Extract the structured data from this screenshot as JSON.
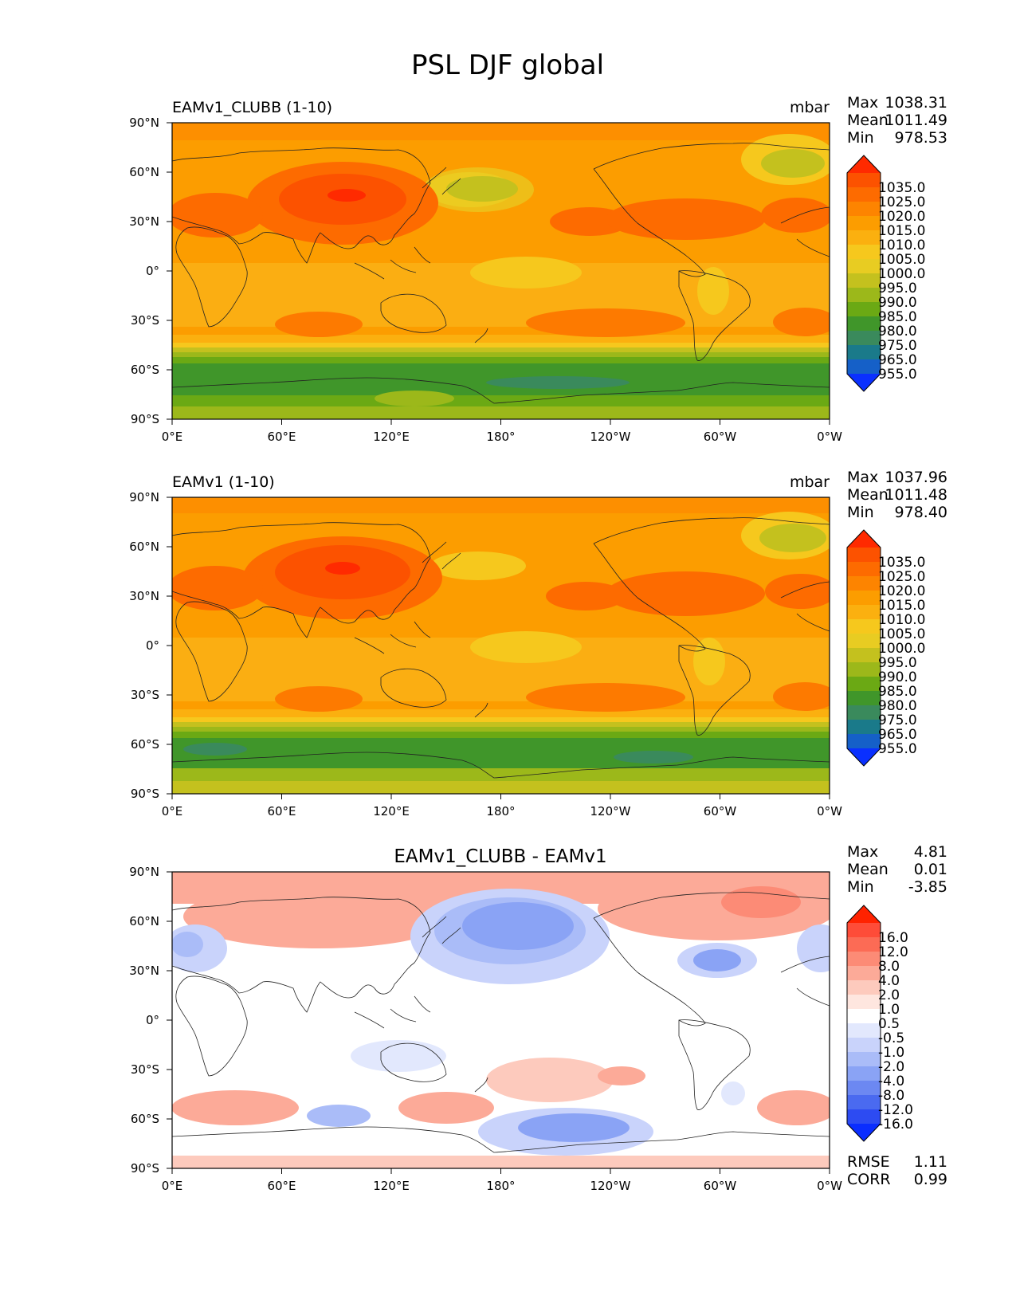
{
  "title": "PSL DJF global",
  "chart_data": [
    {
      "type": "heatmap",
      "name": "test",
      "left_title": "EAMv1_CLUBB (1-10)",
      "units": "mbar",
      "stats": [
        {
          "label": "Max",
          "value": "1038.31"
        },
        {
          "label": "Mean",
          "value": "1011.49"
        },
        {
          "label": "Min",
          "value": "978.53"
        }
      ],
      "xticks": [
        "0°E",
        "60°E",
        "120°E",
        "180°",
        "120°W",
        "60°W",
        "0°W"
      ],
      "yticks": [
        "90°N",
        "60°N",
        "30°N",
        "0°",
        "30°S",
        "60°S",
        "90°S"
      ],
      "xlim": [
        0,
        360
      ],
      "ylim": [
        -90,
        90
      ],
      "colorbar": {
        "levels": [
          "1035.0",
          "1025.0",
          "1020.0",
          "1015.0",
          "1010.0",
          "1005.0",
          "1000.0",
          "995.0",
          "990.0",
          "985.0",
          "980.0",
          "975.0",
          "965.0",
          "955.0"
        ],
        "colors": [
          "#ff2a00",
          "#fc5200",
          "#fd6b00",
          "#fd8400",
          "#fc9d00",
          "#fbb00f",
          "#f6c81d",
          "#e8cc22",
          "#c4c11e",
          "#9cb81a",
          "#6ba914",
          "#40962a",
          "#3a8a5c",
          "#1a7a8a",
          "#1560c8",
          "#0a30ff"
        ]
      }
    },
    {
      "type": "heatmap",
      "name": "reference",
      "left_title": "EAMv1 (1-10)",
      "units": "mbar",
      "stats": [
        {
          "label": "Max",
          "value": "1037.96"
        },
        {
          "label": "Mean",
          "value": "1011.48"
        },
        {
          "label": "Min",
          "value": "978.40"
        }
      ],
      "xticks": [
        "0°E",
        "60°E",
        "120°E",
        "180°",
        "120°W",
        "60°W",
        "0°W"
      ],
      "yticks": [
        "90°N",
        "60°N",
        "30°N",
        "0°",
        "30°S",
        "60°S",
        "90°S"
      ],
      "xlim": [
        0,
        360
      ],
      "ylim": [
        -90,
        90
      ],
      "colorbar": {
        "levels": [
          "1035.0",
          "1025.0",
          "1020.0",
          "1015.0",
          "1010.0",
          "1005.0",
          "1000.0",
          "995.0",
          "990.0",
          "985.0",
          "980.0",
          "975.0",
          "965.0",
          "955.0"
        ],
        "colors": [
          "#ff2a00",
          "#fc5200",
          "#fd6b00",
          "#fd8400",
          "#fc9d00",
          "#fbb00f",
          "#f6c81d",
          "#e8cc22",
          "#c4c11e",
          "#9cb81a",
          "#6ba914",
          "#40962a",
          "#3a8a5c",
          "#1a7a8a",
          "#1560c8",
          "#0a30ff"
        ]
      }
    },
    {
      "type": "heatmap",
      "name": "difference",
      "center_title": "EAMv1_CLUBB - EAMv1",
      "stats": [
        {
          "label": "Max",
          "value": "4.81"
        },
        {
          "label": "Mean",
          "value": "0.01"
        },
        {
          "label": "Min",
          "value": "-3.85"
        }
      ],
      "metrics": [
        {
          "label": "RMSE",
          "value": "1.11"
        },
        {
          "label": "CORR",
          "value": "0.99"
        }
      ],
      "xticks": [
        "0°E",
        "60°E",
        "120°E",
        "180°",
        "120°W",
        "60°W",
        "0°W"
      ],
      "yticks": [
        "90°N",
        "60°N",
        "30°N",
        "0°",
        "30°S",
        "60°S",
        "90°S"
      ],
      "xlim": [
        0,
        360
      ],
      "ylim": [
        -90,
        90
      ],
      "colorbar": {
        "levels": [
          "16.0",
          "12.0",
          "8.0",
          "4.0",
          "2.0",
          "1.0",
          "0.5",
          "-0.5",
          "-1.0",
          "-2.0",
          "-4.0",
          "-8.0",
          "-12.0",
          "-16.0"
        ],
        "colors": [
          "#ff2200",
          "#fe4c38",
          "#fc6b55",
          "#fc8b76",
          "#fcaa98",
          "#fdcabd",
          "#fee6df",
          "#ffffff",
          "#e2e8fd",
          "#c9d3fb",
          "#aabcf8",
          "#8aa3f5",
          "#6c88f2",
          "#4a6af0",
          "#2d4bf2",
          "#0a2dff"
        ]
      }
    }
  ]
}
